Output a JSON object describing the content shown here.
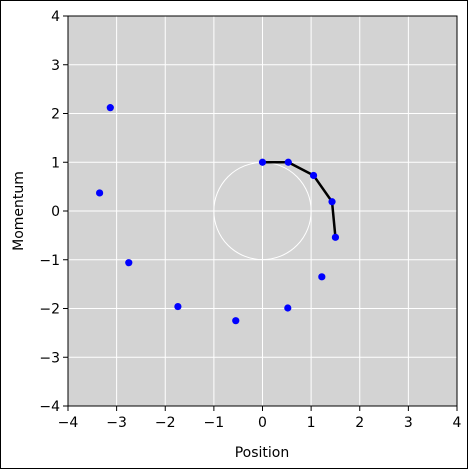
{
  "chart_data": {
    "type": "scatter",
    "title": "",
    "xlabel": "Position",
    "ylabel": "Momentum",
    "xlim": [
      -4,
      4
    ],
    "ylim": [
      -4,
      4
    ],
    "xticks": [
      "−4",
      "−3",
      "−2",
      "−1",
      "0",
      "1",
      "2",
      "3",
      "4"
    ],
    "yticks": [
      "−4",
      "−3",
      "−2",
      "−1",
      "0",
      "1",
      "2",
      "3",
      "4"
    ],
    "grid": true,
    "colors": {
      "plot_bg": "#d3d3d3",
      "grid": "#ffffff",
      "points": "#0000ff",
      "path": "#000000",
      "circle": "#ffffff"
    },
    "unit_circle": {
      "center": [
        0,
        0
      ],
      "radius": 1
    },
    "points": [
      {
        "x": 0.0,
        "y": 1.0
      },
      {
        "x": 0.53,
        "y": 1.0
      },
      {
        "x": 1.05,
        "y": 0.73
      },
      {
        "x": 1.43,
        "y": 0.19
      },
      {
        "x": 1.5,
        "y": -0.54
      },
      {
        "x": 1.22,
        "y": -1.35
      },
      {
        "x": 0.52,
        "y": -1.99
      },
      {
        "x": -0.55,
        "y": -2.25
      },
      {
        "x": -1.74,
        "y": -1.96
      },
      {
        "x": -2.75,
        "y": -1.06
      },
      {
        "x": -3.35,
        "y": 0.37
      },
      {
        "x": -3.13,
        "y": 2.12
      }
    ],
    "path_points": [
      {
        "x": 0.0,
        "y": 1.0
      },
      {
        "x": 0.53,
        "y": 1.0
      },
      {
        "x": 1.05,
        "y": 0.73
      },
      {
        "x": 1.43,
        "y": 0.19
      },
      {
        "x": 1.5,
        "y": -0.54
      }
    ]
  }
}
